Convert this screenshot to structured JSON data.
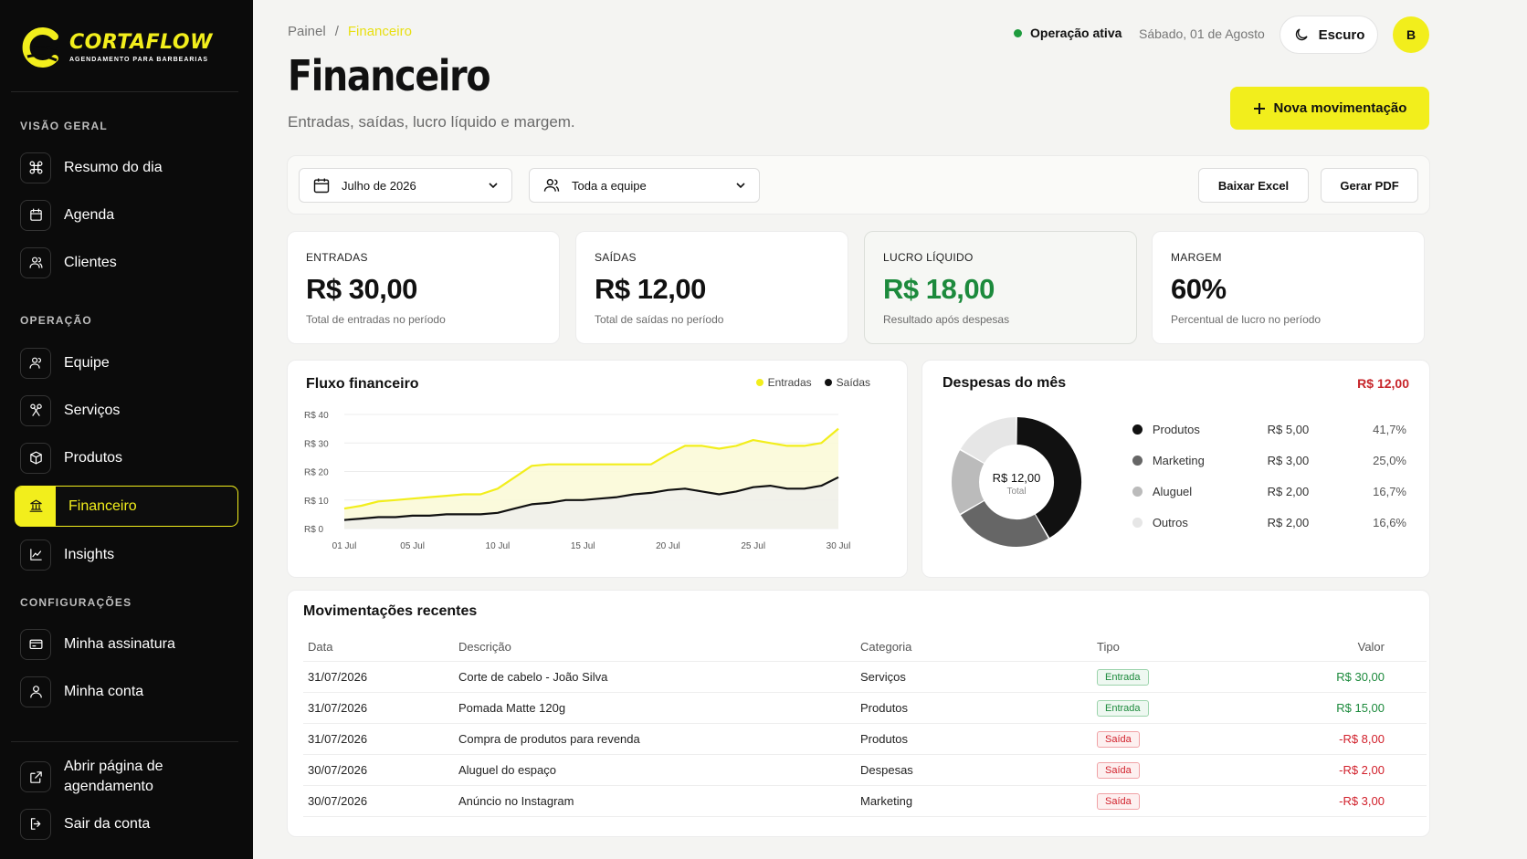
{
  "brand": {
    "name": "CORTAFLOW",
    "tagline": "AGENDAMENTO PARA BARBEARIAS"
  },
  "sidebar": {
    "sections": {
      "overview": "VISÃO GERAL",
      "operation": "OPERAÇÃO",
      "settings": "CONFIGURAÇÕES"
    },
    "items": [
      {
        "label": "Resumo do dia",
        "icon": "command-icon"
      },
      {
        "label": "Agenda",
        "icon": "calendar-icon"
      },
      {
        "label": "Clientes",
        "icon": "users-icon"
      },
      {
        "label": "Equipe",
        "icon": "team-icon"
      },
      {
        "label": "Serviços",
        "icon": "scissors-icon"
      },
      {
        "label": "Produtos",
        "icon": "box-icon"
      },
      {
        "label": "Financeiro",
        "icon": "bank-icon",
        "active": true
      },
      {
        "label": "Insights",
        "icon": "chart-line-icon"
      },
      {
        "label": "Minha assinatura",
        "icon": "card-icon"
      },
      {
        "label": "Minha conta",
        "icon": "user-icon"
      }
    ],
    "footer": [
      {
        "label_line1": "Abrir página de",
        "label_line2": "agendamento",
        "icon": "external-link-icon"
      },
      {
        "label": "Sair da conta",
        "icon": "logout-icon"
      }
    ]
  },
  "breadcrumb": {
    "root": "Painel",
    "separator": "/",
    "current": "Financeiro"
  },
  "page": {
    "title": "Financeiro",
    "subtitle": "Entradas, saídas, lucro líquido e margem."
  },
  "header": {
    "status": "Operação ativa",
    "date": "Sábado, 01 de Agosto",
    "theme_label": "Escuro",
    "avatar_initial": "B",
    "primary_action": "Nova movimentação"
  },
  "filters": {
    "period": "Julho de 2026",
    "team": "Toda a equipe",
    "export_excel": "Baixar Excel",
    "export_pdf": "Gerar PDF"
  },
  "kpis": [
    {
      "label": "ENTRADAS",
      "value": "R$ 30,00",
      "sub": "Total de entradas no período"
    },
    {
      "label": "SAÍDAS",
      "value": "R$ 12,00",
      "sub": "Total de saídas no período"
    },
    {
      "label": "LUCRO LÍQUIDO",
      "value": "R$ 18,00",
      "sub": "Resultado após despesas"
    },
    {
      "label": "MARGEM",
      "value": "60%",
      "sub": "Percentual de lucro no período"
    }
  ],
  "cashflow": {
    "title": "Fluxo financeiro",
    "legend_in": "Entradas",
    "legend_out": "Saídas"
  },
  "expenses": {
    "title": "Despesas do mês",
    "total": "R$ 12,00",
    "center_value": "R$ 12,00",
    "center_label": "Total",
    "items": [
      {
        "name": "Produtos",
        "amount": "R$ 5,00",
        "pct": "41,7%",
        "color": "#111111"
      },
      {
        "name": "Marketing",
        "amount": "R$ 3,00",
        "pct": "25,0%",
        "color": "#666666"
      },
      {
        "name": "Aluguel",
        "amount": "R$ 2,00",
        "pct": "16,7%",
        "color": "#bbbbbb"
      },
      {
        "name": "Outros",
        "amount": "R$ 2,00",
        "pct": "16,6%",
        "color": "#e6e6e6"
      }
    ]
  },
  "movements": {
    "title": "Movimentações recentes",
    "headers": {
      "date": "Data",
      "desc": "Descrição",
      "cat": "Categoria",
      "type": "Tipo",
      "value": "Valor"
    },
    "rows": [
      {
        "date": "31/07/2026",
        "desc": "Corte de cabelo - João Silva",
        "cat": "Serviços",
        "type": "Entrada",
        "value": "R$ 30,00",
        "kind": "in"
      },
      {
        "date": "31/07/2026",
        "desc": "Pomada Matte 120g",
        "cat": "Produtos",
        "type": "Entrada",
        "value": "R$ 15,00",
        "kind": "in"
      },
      {
        "date": "31/07/2026",
        "desc": "Compra de produtos para revenda",
        "cat": "Produtos",
        "type": "Saída",
        "value": "-R$ 8,00",
        "kind": "out"
      },
      {
        "date": "30/07/2026",
        "desc": "Aluguel do espaço",
        "cat": "Despesas",
        "type": "Saída",
        "value": "-R$ 2,00",
        "kind": "out"
      },
      {
        "date": "30/07/2026",
        "desc": "Anúncio no Instagram",
        "cat": "Marketing",
        "type": "Saída",
        "value": "-R$ 3,00",
        "kind": "out"
      }
    ]
  },
  "chart_data": [
    {
      "type": "area",
      "title": "Fluxo financeiro",
      "x": [
        "01 Jul",
        "02 Jul",
        "03 Jul",
        "04 Jul",
        "05 Jul",
        "06 Jul",
        "07 Jul",
        "08 Jul",
        "09 Jul",
        "10 Jul",
        "11 Jul",
        "12 Jul",
        "13 Jul",
        "14 Jul",
        "15 Jul",
        "16 Jul",
        "17 Jul",
        "18 Jul",
        "19 Jul",
        "20 Jul",
        "21 Jul",
        "22 Jul",
        "23 Jul",
        "24 Jul",
        "25 Jul",
        "26 Jul",
        "27 Jul",
        "28 Jul",
        "29 Jul",
        "30 Jul"
      ],
      "x_ticks": [
        "01 Jul",
        "05 Jul",
        "10 Jul",
        "15 Jul",
        "20 Jul",
        "25 Jul",
        "30 Jul"
      ],
      "y_ticks": [
        "R$ 0",
        "R$ 10",
        "R$ 20",
        "R$ 30",
        "R$ 40"
      ],
      "ylim": [
        0,
        40
      ],
      "series": [
        {
          "name": "Entradas",
          "color": "#f2ee1c",
          "values": [
            7,
            8,
            9.5,
            10,
            10.5,
            11,
            11.5,
            12,
            12,
            14,
            18,
            22,
            22.5,
            22.5,
            22.5,
            22.5,
            22.5,
            22.5,
            22.5,
            26,
            29,
            29,
            28,
            29,
            31,
            30,
            29,
            29,
            30,
            35
          ]
        },
        {
          "name": "Saídas",
          "color": "#111111",
          "values": [
            3,
            3.5,
            4,
            4,
            4.5,
            4.5,
            5,
            5,
            5,
            5.5,
            7,
            8.5,
            9,
            10,
            10,
            10.5,
            11,
            12,
            12.5,
            13.5,
            14,
            13,
            12,
            13,
            14.5,
            15,
            14,
            14,
            15,
            18
          ]
        }
      ],
      "legend": "top-right",
      "grid": true
    },
    {
      "type": "pie",
      "title": "Despesas do mês",
      "categories": [
        "Produtos",
        "Marketing",
        "Aluguel",
        "Outros"
      ],
      "values": [
        5,
        3,
        2,
        2
      ],
      "colors": [
        "#111111",
        "#666666",
        "#bbbbbb",
        "#e6e6e6"
      ]
    }
  ]
}
